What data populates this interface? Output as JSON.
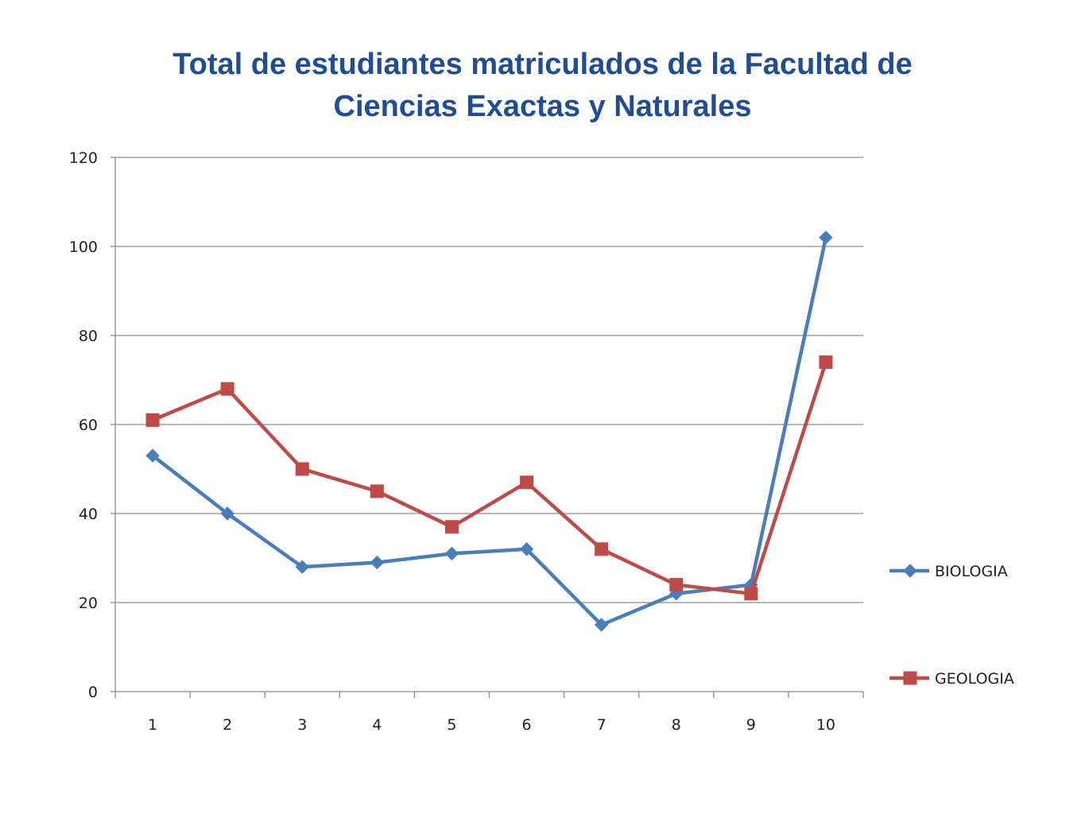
{
  "chart_data": {
    "type": "line",
    "title_lines": [
      "Total de estudiantes matriculados de la Facultad de",
      "Ciencias Exactas y Naturales"
    ],
    "categories": [
      "1",
      "2",
      "3",
      "4",
      "5",
      "6",
      "7",
      "8",
      "9",
      "10"
    ],
    "ylim": [
      0,
      120
    ],
    "yticks": [
      0,
      20,
      40,
      60,
      80,
      100,
      120
    ],
    "grid": true,
    "legend_position": "right",
    "series": [
      {
        "name": "BIOLOGIA",
        "color": "#4a7ebb",
        "marker": "diamond",
        "values": [
          53,
          40,
          28,
          29,
          31,
          32,
          15,
          22,
          24,
          102
        ]
      },
      {
        "name": "GEOLOGIA",
        "color": "#be4b48",
        "marker": "square",
        "values": [
          61,
          68,
          50,
          45,
          37,
          47,
          32,
          24,
          22,
          74
        ]
      }
    ]
  }
}
